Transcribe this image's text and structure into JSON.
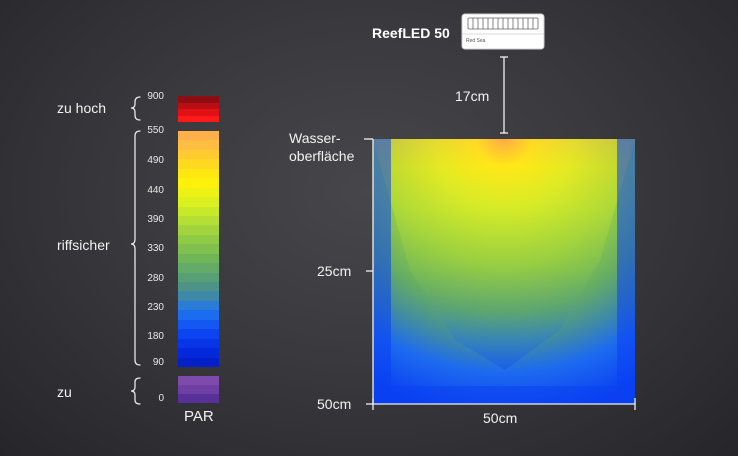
{
  "device": {
    "name": "ReefLED 50",
    "brand_mark": "Red Sea",
    "distance": "17cm"
  },
  "scale": {
    "unit_label": "PAR",
    "ticks": [
      "900",
      "550",
      "490",
      "440",
      "390",
      "330",
      "280",
      "230",
      "180",
      "90",
      "0"
    ],
    "zones": {
      "too_high": "zu hoch",
      "reef_safe": "riffsicher",
      "too_low": "zu"
    },
    "colors": {
      "too_high": [
        "#8e0d12",
        "#b80e14",
        "#e01015",
        "#ff1a1a"
      ],
      "reef_safe": [
        "#ffb04a",
        "#ffbe3f",
        "#ffcb30",
        "#ffd920",
        "#ffe712",
        "#fdf10c",
        "#eef214",
        "#dcef1f",
        "#c8e82a",
        "#b5df34",
        "#a2d53d",
        "#90cb46",
        "#7fc04f",
        "#70b658",
        "#63ab66",
        "#579f75",
        "#4d9486",
        "#3e88a8",
        "#2a7cd6",
        "#1c6cf0",
        "#1458f2",
        "#0c45ef",
        "#0735e8",
        "#0428da",
        "#0420c8"
      ],
      "too_low": [
        "#7e4bad",
        "#6e3fa5",
        "#58309a"
      ]
    }
  },
  "tank": {
    "surface_label": "Wasser-\noberfläche",
    "mid_depth": "25cm",
    "bottom_depth": "50cm",
    "width": "50cm"
  },
  "colors": {
    "background": "#3a3a3e",
    "line": "#f0f0f0"
  }
}
